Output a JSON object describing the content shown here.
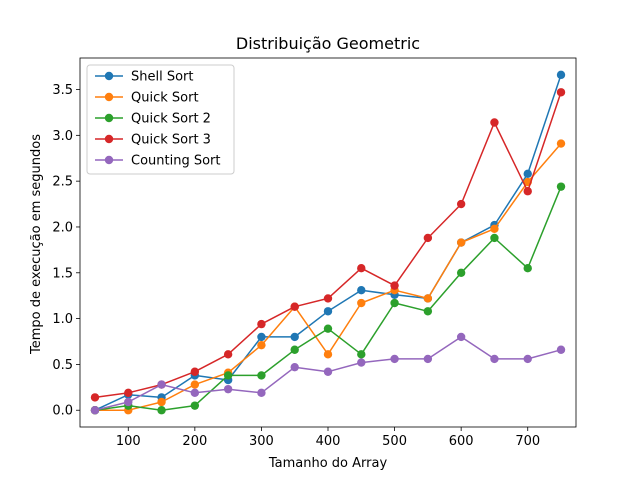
{
  "chart_data": {
    "type": "line",
    "title": "Distribuição Geometric",
    "xlabel": "Tamanho do Array",
    "ylabel": "Tempo de execução em segundos",
    "xlim": [
      27.5,
      772.5
    ],
    "ylim": [
      -0.183,
      3.844
    ],
    "xticks": [
      100,
      200,
      300,
      400,
      500,
      600,
      700
    ],
    "yticks": [
      0.0,
      0.5,
      1.0,
      1.5,
      2.0,
      2.5,
      3.0,
      3.5
    ],
    "grid": false,
    "legend_position": "top-left",
    "x": [
      50,
      100,
      150,
      200,
      250,
      300,
      350,
      400,
      450,
      500,
      550,
      600,
      650,
      700,
      750
    ],
    "series": [
      {
        "name": "Shell Sort",
        "color": "#1f77b4",
        "values": [
          0.0,
          0.17,
          0.14,
          0.38,
          0.33,
          0.8,
          0.8,
          1.08,
          1.31,
          1.26,
          1.22,
          1.83,
          2.02,
          2.58,
          3.66
        ]
      },
      {
        "name": "Quick Sort",
        "color": "#ff7f0e",
        "values": [
          0.0,
          0.0,
          0.09,
          0.28,
          0.41,
          0.71,
          1.13,
          0.61,
          1.17,
          1.31,
          1.22,
          1.83,
          1.98,
          2.49,
          2.91
        ]
      },
      {
        "name": "Quick Sort 2",
        "color": "#2ca02c",
        "values": [
          0.0,
          0.05,
          0.0,
          0.05,
          0.38,
          0.38,
          0.66,
          0.89,
          0.61,
          1.17,
          1.08,
          1.5,
          1.88,
          1.55,
          2.44
        ]
      },
      {
        "name": "Quick Sort 3",
        "color": "#d62728",
        "values": [
          0.14,
          0.19,
          0.28,
          0.42,
          0.61,
          0.94,
          1.13,
          1.22,
          1.55,
          1.36,
          1.88,
          2.25,
          3.14,
          2.39,
          3.47
        ]
      },
      {
        "name": "Counting Sort",
        "color": "#9467bd",
        "values": [
          0.0,
          0.09,
          0.28,
          0.19,
          0.23,
          0.19,
          0.47,
          0.42,
          0.52,
          0.56,
          0.56,
          0.8,
          0.56,
          0.56,
          0.66
        ]
      }
    ]
  }
}
